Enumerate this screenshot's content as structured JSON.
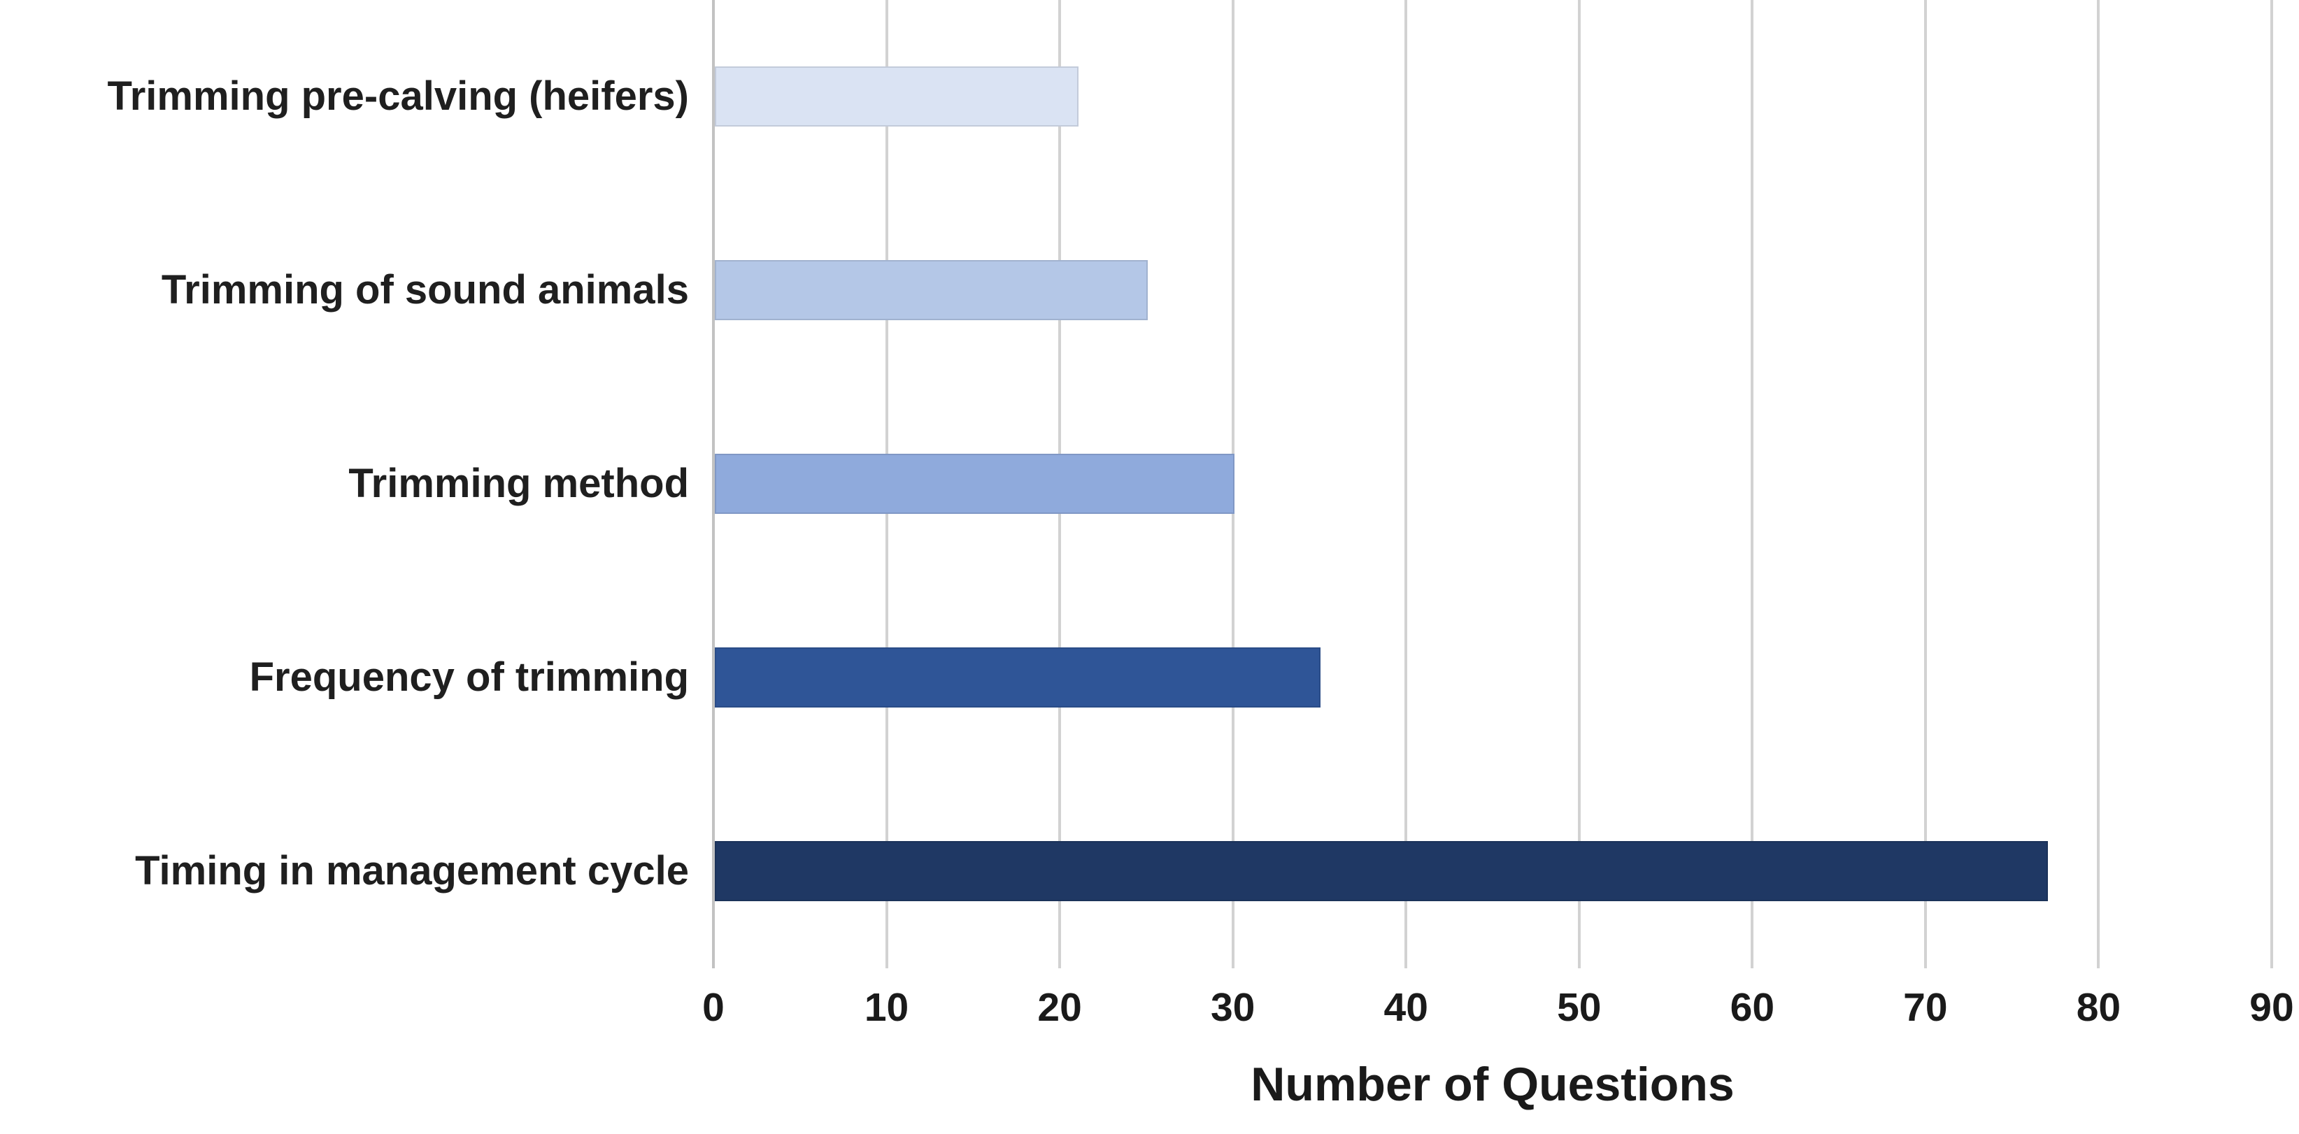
{
  "chart_data": {
    "type": "bar",
    "orientation": "horizontal",
    "categories": [
      "Trimming pre-calving (heifers)",
      "Trimming of sound animals",
      "Trimming method",
      "Frequency of trimming",
      "Timing in management cycle"
    ],
    "values": [
      21,
      25,
      30,
      35,
      77
    ],
    "bar_colors": [
      "#dae3f3",
      "#b4c7e7",
      "#8faadc",
      "#2f5597",
      "#1f3864"
    ],
    "title": "",
    "xlabel": "Number of Questions",
    "ylabel": "",
    "xlim": [
      0,
      90
    ],
    "xticks": [
      0,
      10,
      20,
      30,
      40,
      50,
      60,
      70,
      80,
      90
    ],
    "grid": "vertical",
    "gridline_color": "#d2d2d2",
    "legend": "none",
    "text_color": "#1a1a1a"
  }
}
